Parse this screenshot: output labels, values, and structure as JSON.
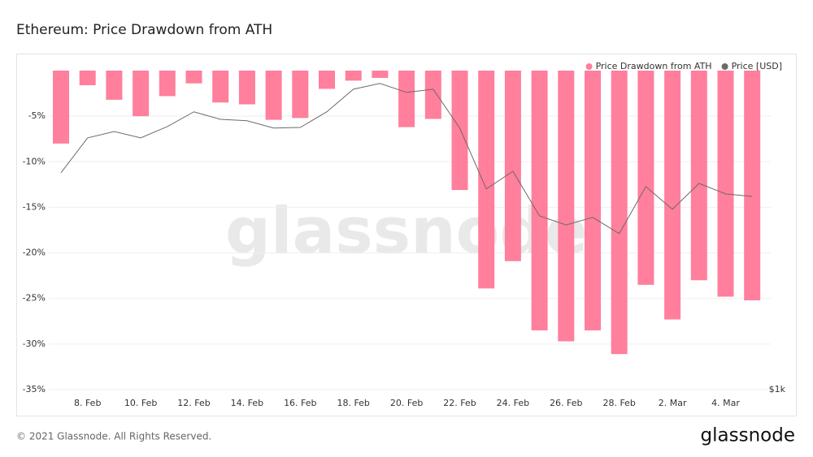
{
  "chart_data": {
    "type": "bar",
    "title": "Ethereum: Price Drawdown from ATH",
    "watermark": "glassnode",
    "footer": "© 2021 Glassnode. All Rights Reserved.",
    "brand": "glassnode",
    "categories": [
      null,
      "8. Feb",
      null,
      "10. Feb",
      null,
      "12. Feb",
      null,
      "14. Feb",
      null,
      "16. Feb",
      null,
      "18. Feb",
      null,
      "20. Feb",
      null,
      "22. Feb",
      null,
      "24. Feb",
      null,
      "26. Feb",
      null,
      "28. Feb",
      null,
      "2. Mar",
      null,
      "4. Mar",
      null
    ],
    "series": [
      {
        "name": "Price Drawdown from ATH",
        "color": "#ff7f9c",
        "type": "bar",
        "values": [
          -8.0,
          -1.6,
          -3.2,
          -5.0,
          -2.8,
          -1.4,
          -3.5,
          -3.7,
          -5.4,
          -5.2,
          -2.0,
          -1.1,
          -0.8,
          -6.2,
          -5.3,
          -13.1,
          -23.9,
          -20.9,
          -28.5,
          -29.7,
          -28.5,
          -31.1,
          -23.5,
          -27.3,
          -23.0,
          -24.8,
          -25.2
        ]
      },
      {
        "name": "Price [USD]",
        "color": "#6b6b6b",
        "type": "line",
        "axis": "y2",
        "values": [
          1748,
          1868,
          1890,
          1868,
          1907,
          1958,
          1932,
          1927,
          1902,
          1904,
          1958,
          2036,
          2056,
          2025,
          2036,
          1902,
          1692,
          1753,
          1599,
          1568,
          1594,
          1538,
          1700,
          1622,
          1711,
          1675,
          1666
        ]
      }
    ],
    "ylim": [
      -35,
      0
    ],
    "yticks": [
      {
        "value": -5,
        "label": "-5%"
      },
      {
        "value": -10,
        "label": "-10%"
      },
      {
        "value": -15,
        "label": "-15%"
      },
      {
        "value": -20,
        "label": "-20%"
      },
      {
        "value": -25,
        "label": "-25%"
      },
      {
        "value": -30,
        "label": "-30%"
      },
      {
        "value": -35,
        "label": "-35%"
      }
    ],
    "y2lim": [
      1000,
      2100
    ],
    "y2ticks": [
      {
        "value": 1000,
        "label": "$1k"
      }
    ],
    "grid": true,
    "legend": "top-right"
  }
}
